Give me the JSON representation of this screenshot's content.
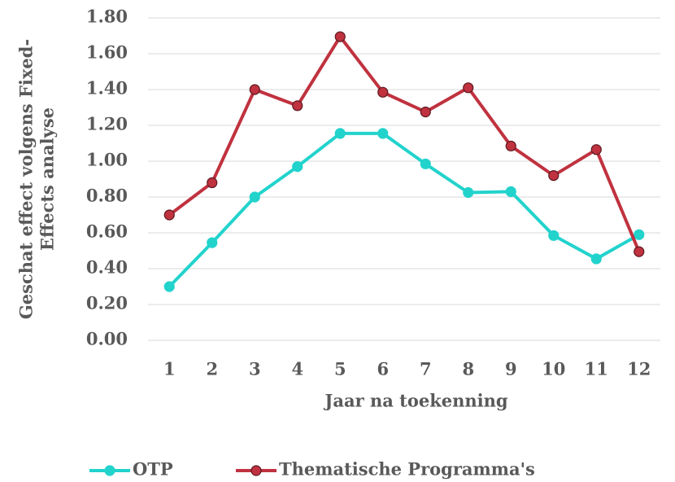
{
  "chart_data": {
    "type": "line",
    "x_label": "Jaar na toekenning",
    "y_label": [
      "Geschat effect volgens Fixed-",
      "Effects analyse"
    ],
    "categories": [
      "1",
      "2",
      "3",
      "4",
      "5",
      "6",
      "7",
      "8",
      "9",
      "10",
      "11",
      "12"
    ],
    "series": [
      {
        "name": "OTP",
        "color": "#22d3cc",
        "values": [
          0.3,
          0.545,
          0.8,
          0.97,
          1.155,
          1.155,
          0.985,
          0.825,
          0.83,
          0.585,
          0.455,
          0.59
        ]
      },
      {
        "name": "Thematische Programma's",
        "color": "#c0323f",
        "values": [
          0.7,
          0.88,
          1.4,
          1.31,
          1.695,
          1.385,
          1.275,
          1.41,
          1.085,
          0.92,
          1.065,
          0.495
        ]
      }
    ],
    "ylim": [
      0,
      1.8
    ],
    "yticks": [
      {
        "value": 0,
        "label": "0.00"
      },
      {
        "value": 0.2,
        "label": "0.20"
      },
      {
        "value": 0.4,
        "label": "0.40"
      },
      {
        "value": 0.6,
        "label": "0.60"
      },
      {
        "value": 0.8,
        "label": "0.80"
      },
      {
        "value": 1,
        "label": "1.00"
      },
      {
        "value": 1.2,
        "label": "1.20"
      },
      {
        "value": 1.4,
        "label": "1.40"
      },
      {
        "value": 1.6,
        "label": "1.60"
      },
      {
        "value": 1.8,
        "label": "1.80"
      }
    ],
    "grid": true,
    "legend": "bottom"
  }
}
